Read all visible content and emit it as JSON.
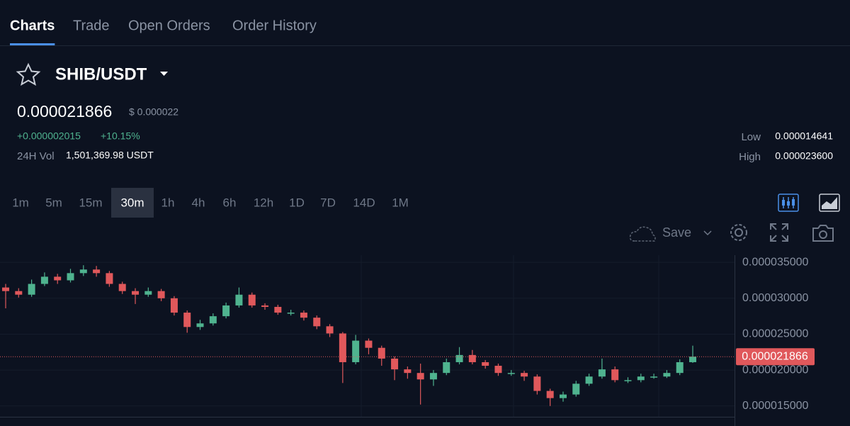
{
  "tabs": [
    "Charts",
    "Trade",
    "Open Orders",
    "Order History"
  ],
  "active_tab": 0,
  "header": {
    "pair": "SHIB/USDT",
    "price": "0.000021866",
    "usd_price": "$ 0.000022",
    "change": "+0.000002015",
    "change_pct": "+10.15%",
    "vol_label": "24H Vol",
    "vol_value": "1,501,369.98 USDT",
    "low_label": "Low",
    "low_value": "0.000014641",
    "high_label": "High",
    "high_value": "0.000023600"
  },
  "intervals": [
    "1m",
    "5m",
    "15m",
    "30m",
    "1h",
    "4h",
    "6h",
    "12h",
    "1D",
    "7D",
    "14D",
    "1M"
  ],
  "active_interval": 3,
  "toolbar": {
    "save": "Save"
  },
  "chart_data": {
    "type": "candlestick",
    "up_color": "#4fb38f",
    "down_color": "#e0585b",
    "ylim": [
      1.33e-05,
      3.6e-05
    ],
    "yticks": [
      {
        "value": 1.5e-05,
        "label": "0.000015000"
      },
      {
        "value": 2e-05,
        "label": "0.000020000"
      },
      {
        "value": 2.5e-05,
        "label": "0.000025000"
      },
      {
        "value": 3e-05,
        "label": "0.000030000"
      },
      {
        "value": 3.5e-05,
        "label": "0.000035000"
      }
    ],
    "grid": true,
    "last_price": {
      "value": 2.1866e-05,
      "label": "0.000021866"
    },
    "open": [
      3.15e-05,
      3.1e-05,
      3.05e-05,
      3.2e-05,
      3.3e-05,
      3.25e-05,
      3.35e-05,
      3.4e-05,
      3.35e-05,
      3.2e-05,
      3.1e-05,
      3.05e-05,
      3.1e-05,
      3e-05,
      2.8e-05,
      2.6e-05,
      2.65e-05,
      2.75e-05,
      2.9e-05,
      3.05e-05,
      2.9e-05,
      2.88e-05,
      2.8e-05,
      2.8e-05,
      2.73e-05,
      2.61e-05,
      2.51e-05,
      2.11e-05,
      2.41e-05,
      2.31e-05,
      2.16e-05,
      2.01e-05,
      1.96e-05,
      1.87e-05,
      1.96e-05,
      2.11e-05,
      2.21e-05,
      2.11e-05,
      2.06e-05,
      1.96e-05,
      1.96e-05,
      1.91e-05,
      1.71e-05,
      1.61e-05,
      1.66e-05,
      1.81e-05,
      1.91e-05,
      2.01e-05,
      1.86e-05,
      1.86e-05,
      1.91e-05,
      1.91e-05,
      1.96e-05,
      2.11e-05
    ],
    "high": [
      3.2e-05,
      3.14e-05,
      3.26e-05,
      3.36e-05,
      3.34e-05,
      3.41e-05,
      3.46e-05,
      3.45e-05,
      3.38e-05,
      3.23e-05,
      3.14e-05,
      3.15e-05,
      3.13e-05,
      3.03e-05,
      2.83e-05,
      2.7e-05,
      2.79e-05,
      2.94e-05,
      3.15e-05,
      3.08e-05,
      2.93e-05,
      2.91e-05,
      2.84e-05,
      2.83e-05,
      2.76e-05,
      2.64e-05,
      2.53e-05,
      2.49e-05,
      2.44e-05,
      2.34e-05,
      2.19e-05,
      2.05e-05,
      2.09e-05,
      2e-05,
      2.16e-05,
      2.32e-05,
      2.28e-05,
      2.14e-05,
      2.09e-05,
      2e-05,
      1.99e-05,
      1.94e-05,
      1.74e-05,
      1.7e-05,
      1.85e-05,
      1.95e-05,
      2.16e-05,
      2.05e-05,
      1.9e-05,
      1.95e-05,
      1.95e-05,
      2e-05,
      2.15e-05,
      2.34e-05
    ],
    "low": [
      2.86e-05,
      3.01e-05,
      3.02e-05,
      3.17e-05,
      3.2e-05,
      3.22e-05,
      3.31e-05,
      3.3e-05,
      3.16e-05,
      3.06e-05,
      2.92e-05,
      3.02e-05,
      2.96e-05,
      2.76e-05,
      2.52e-05,
      2.56e-05,
      2.62e-05,
      2.72e-05,
      2.87e-05,
      2.87e-05,
      2.84e-05,
      2.77e-05,
      2.76e-05,
      2.69e-05,
      2.57e-05,
      2.46e-05,
      1.82e-05,
      2.08e-05,
      2.22e-05,
      2.06e-05,
      1.86e-05,
      1.88e-05,
      1.52e-05,
      1.78e-05,
      1.93e-05,
      2.08e-05,
      2.08e-05,
      2.02e-05,
      1.92e-05,
      1.92e-05,
      1.85e-05,
      1.66e-05,
      1.5e-05,
      1.56e-05,
      1.63e-05,
      1.78e-05,
      1.88e-05,
      1.83e-05,
      1.82e-05,
      1.83e-05,
      1.88e-05,
      1.89e-05,
      1.93e-05,
      2.1e-05
    ],
    "close": [
      3.1e-05,
      3.05e-05,
      3.2e-05,
      3.3e-05,
      3.25e-05,
      3.35e-05,
      3.4e-05,
      3.35e-05,
      3.2e-05,
      3.1e-05,
      3.05e-05,
      3.1e-05,
      3e-05,
      2.8e-05,
      2.6e-05,
      2.65e-05,
      2.75e-05,
      2.9e-05,
      3.05e-05,
      2.9e-05,
      2.88e-05,
      2.8e-05,
      2.8e-05,
      2.73e-05,
      2.61e-05,
      2.51e-05,
      2.11e-05,
      2.41e-05,
      2.31e-05,
      2.16e-05,
      2.01e-05,
      1.96e-05,
      1.87e-05,
      1.96e-05,
      2.11e-05,
      2.21e-05,
      2.11e-05,
      2.06e-05,
      1.96e-05,
      1.96e-05,
      1.91e-05,
      1.71e-05,
      1.61e-05,
      1.66e-05,
      1.81e-05,
      1.91e-05,
      2.01e-05,
      1.86e-05,
      1.86e-05,
      1.91e-05,
      1.91e-05,
      1.96e-05,
      2.11e-05,
      2.1866e-05
    ]
  }
}
